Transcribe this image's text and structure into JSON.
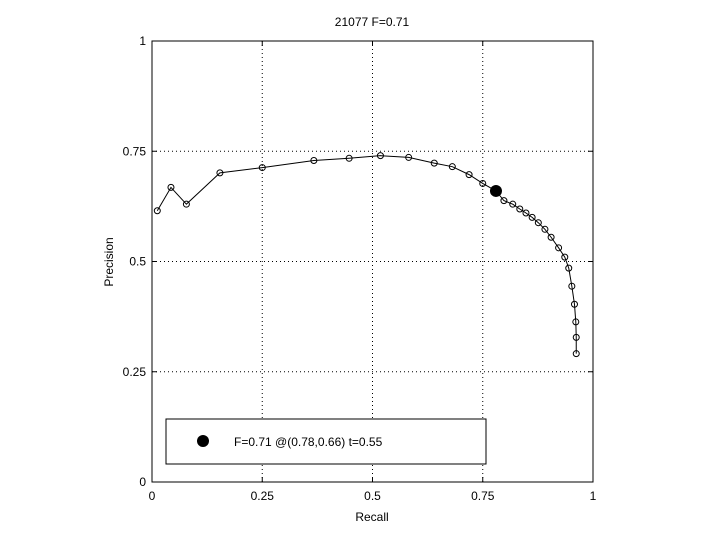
{
  "chart_data": {
    "type": "line",
    "title": "21077 F=0.71",
    "xlabel": "Recall",
    "ylabel": "Precision",
    "xlim": [
      0,
      1
    ],
    "ylim": [
      0,
      1
    ],
    "grid": true,
    "legend_position": "bottom-left",
    "x_ticks": [
      {
        "value": 0,
        "label": "0"
      },
      {
        "value": 0.25,
        "label": "0.25"
      },
      {
        "value": 0.5,
        "label": "0.5"
      },
      {
        "value": 0.75,
        "label": "0.75"
      },
      {
        "value": 1,
        "label": "1"
      }
    ],
    "y_ticks": [
      {
        "value": 0,
        "label": "0"
      },
      {
        "value": 0.25,
        "label": "0.25"
      },
      {
        "value": 0.5,
        "label": "0.5"
      },
      {
        "value": 0.75,
        "label": "0.75"
      },
      {
        "value": 1,
        "label": "1"
      }
    ],
    "series": [
      {
        "marker": "open-circle",
        "color": "#000000",
        "points": [
          [
            0.012,
            0.615
          ],
          [
            0.043,
            0.668
          ],
          [
            0.078,
            0.63
          ],
          [
            0.154,
            0.701
          ],
          [
            0.25,
            0.713
          ],
          [
            0.367,
            0.729
          ],
          [
            0.447,
            0.734
          ],
          [
            0.518,
            0.74
          ],
          [
            0.582,
            0.736
          ],
          [
            0.64,
            0.723
          ],
          [
            0.681,
            0.715
          ],
          [
            0.719,
            0.697
          ],
          [
            0.75,
            0.677
          ],
          [
            0.798,
            0.638
          ],
          [
            0.818,
            0.63
          ],
          [
            0.834,
            0.619
          ],
          [
            0.848,
            0.61
          ],
          [
            0.862,
            0.6
          ],
          [
            0.876,
            0.588
          ],
          [
            0.891,
            0.573
          ],
          [
            0.905,
            0.555
          ],
          [
            0.922,
            0.531
          ],
          [
            0.936,
            0.51
          ],
          [
            0.945,
            0.485
          ],
          [
            0.952,
            0.444
          ],
          [
            0.958,
            0.403
          ],
          [
            0.961,
            0.363
          ],
          [
            0.962,
            0.328
          ],
          [
            0.962,
            0.291
          ]
        ]
      }
    ],
    "highlight": {
      "x": 0.78,
      "y": 0.66,
      "marker": "filled-circle",
      "color": "#000000",
      "legend_label": "F=0.71 @(0.78,0.66) t=0.55"
    }
  }
}
